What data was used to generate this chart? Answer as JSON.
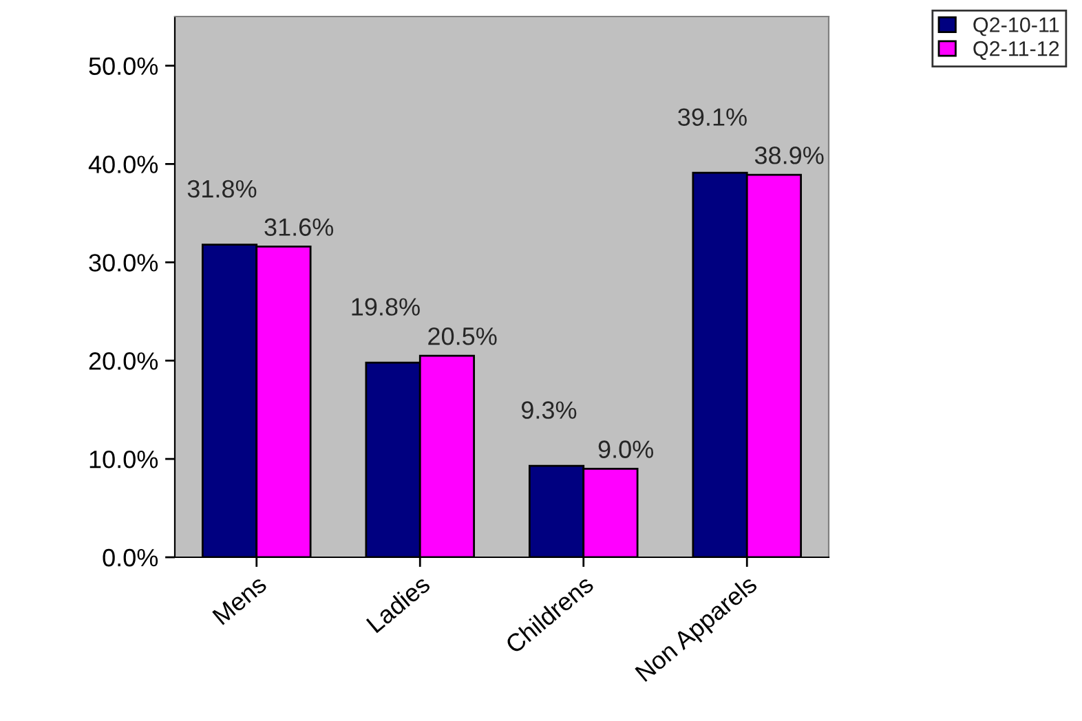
{
  "chart_data": {
    "type": "bar",
    "categories": [
      "Mens",
      "Ladies",
      "Childrens",
      "Non Apparels"
    ],
    "series": [
      {
        "name": "Q2-10-11",
        "color": "#000080",
        "values": [
          31.8,
          19.8,
          9.3,
          39.1
        ],
        "value_labels": [
          "31.8%",
          "19.8%",
          "9.3%",
          "39.1%"
        ]
      },
      {
        "name": "Q2-11-12",
        "color": "#ff00ff",
        "values": [
          31.6,
          20.5,
          9.0,
          38.9
        ],
        "value_labels": [
          "31.6%",
          "20.5%",
          "9.0%",
          "38.9%"
        ]
      }
    ],
    "ylim": [
      0,
      55
    ],
    "yticks": [
      {
        "value": 0,
        "label": "0.0%"
      },
      {
        "value": 10,
        "label": "10.0%"
      },
      {
        "value": 20,
        "label": "20.0%"
      },
      {
        "value": 30,
        "label": "30.0%"
      },
      {
        "value": 40,
        "label": "40.0%"
      },
      {
        "value": 50,
        "label": "50.0%"
      }
    ],
    "grid": false,
    "legend": "top right"
  }
}
